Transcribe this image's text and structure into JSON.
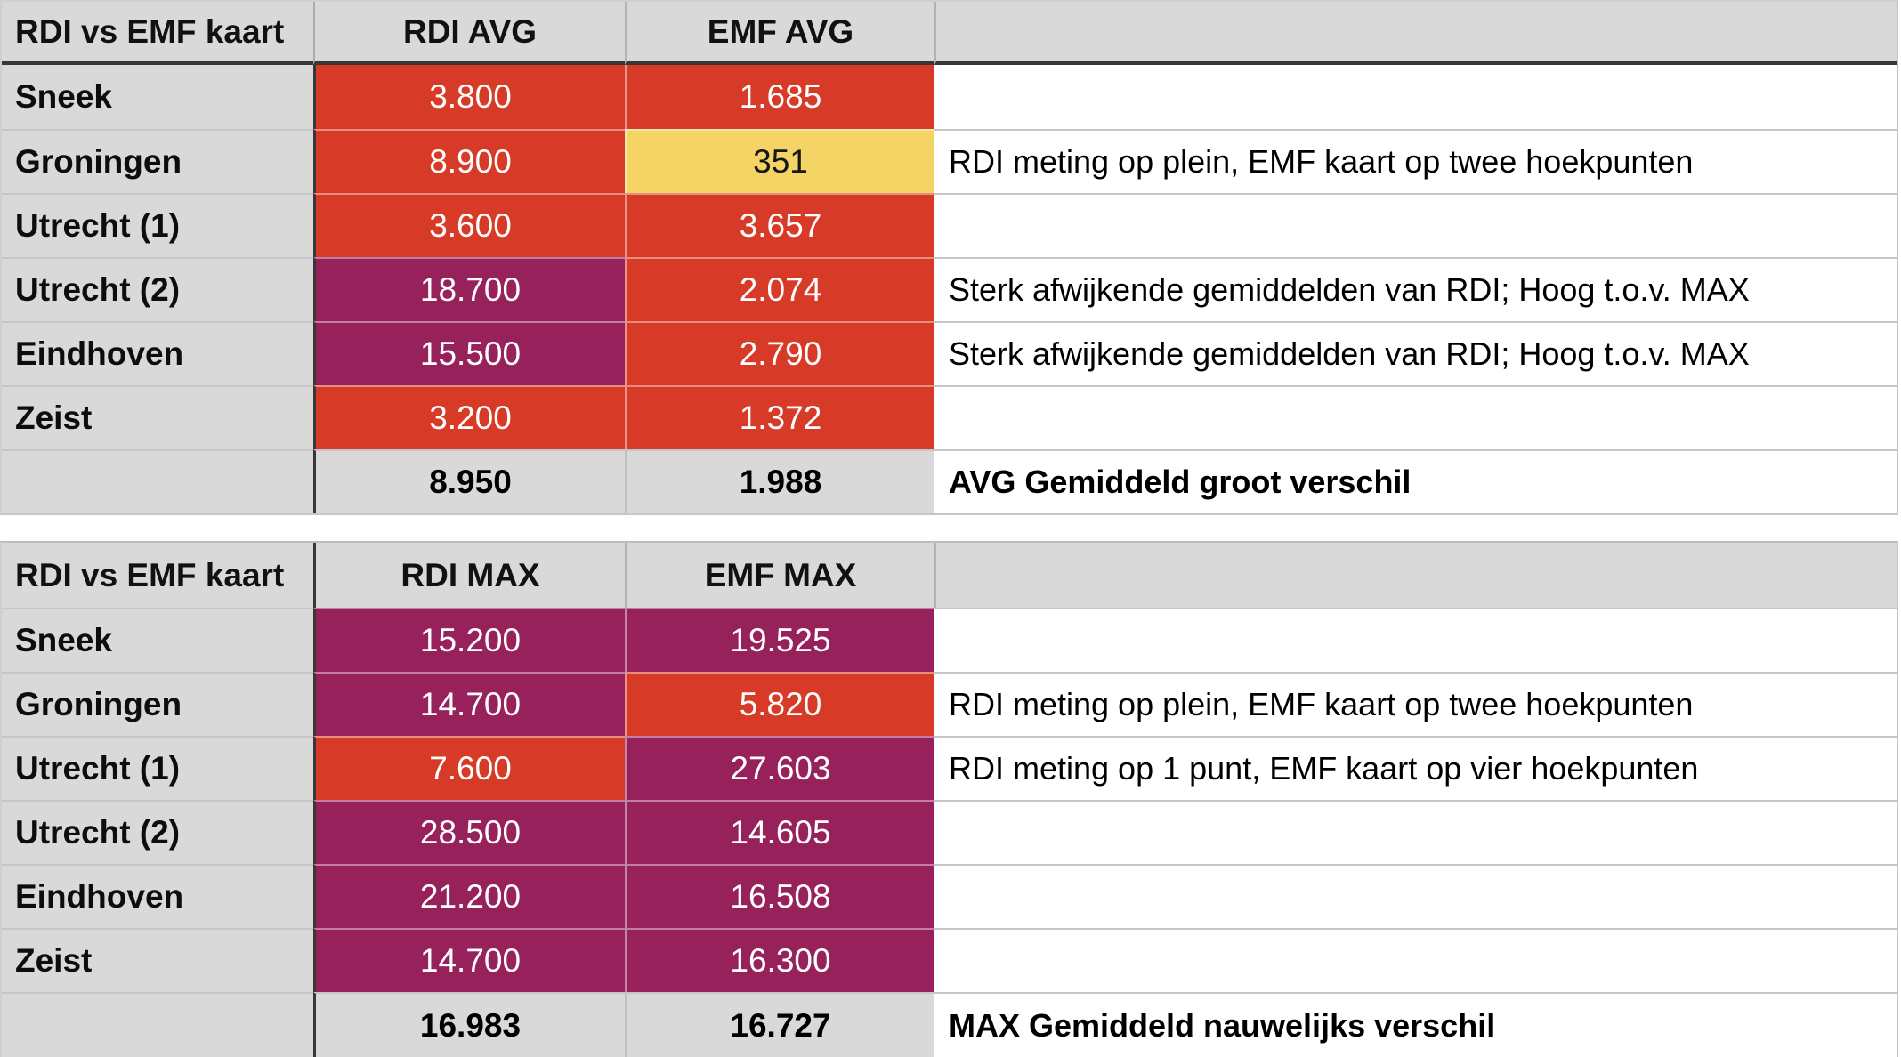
{
  "colors": {
    "red": "#d73b27",
    "purple": "#97215b",
    "yellow": "#f5d466",
    "header_grey": "#d9d9d9",
    "dark_border": "#373737",
    "grid_line": "#c6c6c6",
    "value_text": "#ffffff",
    "label_text": "#000000"
  },
  "tables": [
    {
      "title": "RDI vs EMF kaart",
      "col1_header": "RDI AVG",
      "col2_header": "EMF AVG",
      "rows": [
        {
          "label": "Sneek",
          "v1": "3.800",
          "c1": "red",
          "v2": "1.685",
          "c2": "red",
          "note": ""
        },
        {
          "label": "Groningen",
          "v1": "8.900",
          "c1": "red",
          "v2": "351",
          "c2": "yellow",
          "note": "RDI meting op plein, EMF kaart op twee hoekpunten"
        },
        {
          "label": "Utrecht (1)",
          "v1": "3.600",
          "c1": "red",
          "v2": "3.657",
          "c2": "red",
          "note": ""
        },
        {
          "label": "Utrecht (2)",
          "v1": "18.700",
          "c1": "purple",
          "v2": "2.074",
          "c2": "red",
          "note": "Sterk afwijkende gemiddelden van RDI; Hoog t.o.v. MAX"
        },
        {
          "label": "Eindhoven",
          "v1": "15.500",
          "c1": "purple",
          "v2": "2.790",
          "c2": "red",
          "note": "Sterk afwijkende gemiddelden van RDI; Hoog t.o.v. MAX"
        },
        {
          "label": "Zeist",
          "v1": "3.200",
          "c1": "red",
          "v2": "1.372",
          "c2": "red",
          "note": ""
        }
      ],
      "totals": {
        "v1": "8.950",
        "v2": "1.988",
        "note": "AVG Gemiddeld groot verschil"
      }
    },
    {
      "title": "RDI vs EMF kaart",
      "col1_header": "RDI MAX",
      "col2_header": "EMF MAX",
      "rows": [
        {
          "label": "Sneek",
          "v1": "15.200",
          "c1": "purple",
          "v2": "19.525",
          "c2": "purple",
          "note": ""
        },
        {
          "label": "Groningen",
          "v1": "14.700",
          "c1": "purple",
          "v2": "5.820",
          "c2": "red",
          "note": "RDI meting op plein, EMF kaart op twee hoekpunten"
        },
        {
          "label": "Utrecht (1)",
          "v1": "7.600",
          "c1": "red",
          "v2": "27.603",
          "c2": "purple",
          "note": "RDI meting op 1 punt, EMF kaart op vier hoekpunten"
        },
        {
          "label": "Utrecht (2)",
          "v1": "28.500",
          "c1": "purple",
          "v2": "14.605",
          "c2": "purple",
          "note": ""
        },
        {
          "label": "Eindhoven",
          "v1": "21.200",
          "c1": "purple",
          "v2": "16.508",
          "c2": "purple",
          "note": ""
        },
        {
          "label": "Zeist",
          "v1": "14.700",
          "c1": "purple",
          "v2": "16.300",
          "c2": "purple",
          "note": ""
        }
      ],
      "totals": {
        "v1": "16.983",
        "v2": "16.727",
        "note": "MAX Gemiddeld nauwelijks verschil"
      }
    }
  ]
}
